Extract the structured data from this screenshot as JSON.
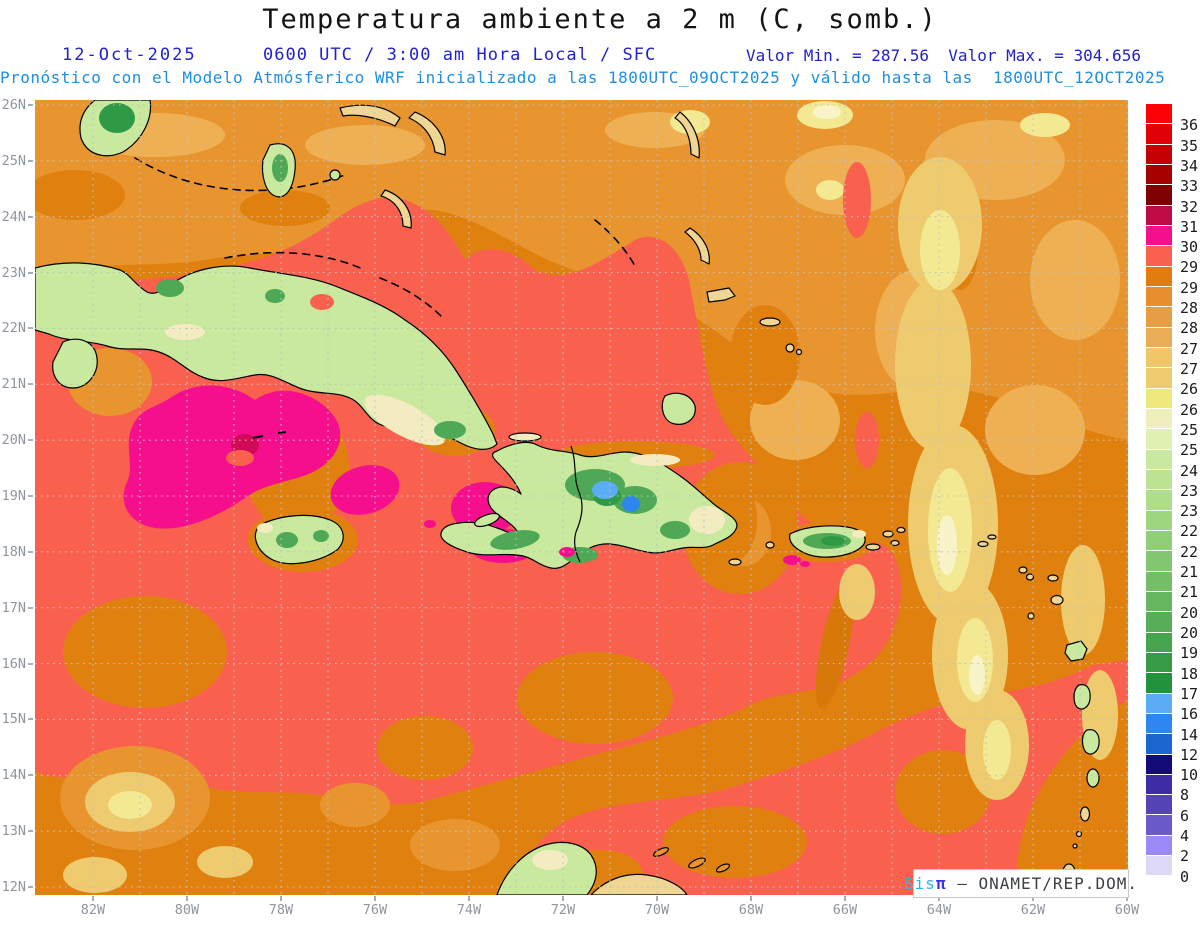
{
  "header": {
    "title": "Temperatura ambiente a 2 m (C, somb.)",
    "date": "12-Oct-2025",
    "time_info": "0600 UTC / 3:00 am Hora Local / SFC",
    "valor_min": "Valor Min. = 287.56",
    "valor_max": "Valor Max. = 304.656",
    "forecast_line": "Pronóstico con el Modelo Atmósferico WRF inicializado a las 1800UTC_09OCT2025 y válido hasta las  1800UTC_12OCT2025"
  },
  "map": {
    "lat_labels": [
      "26N",
      "25N",
      "24N",
      "23N",
      "22N",
      "21N",
      "20N",
      "19N",
      "18N",
      "17N",
      "16N",
      "15N",
      "14N",
      "13N",
      "12N"
    ],
    "lon_labels": [
      "82W",
      "80W",
      "78W",
      "76W",
      "74W",
      "72W",
      "70W",
      "68W",
      "66W",
      "64W",
      "62W",
      "60W"
    ]
  },
  "colorbar": {
    "labels": [
      "36",
      "35",
      "34",
      "33",
      "32",
      "31.5",
      "30.7",
      "29.7",
      "29",
      "28.5",
      "28",
      "27.5",
      "27",
      "26.5",
      "26",
      "25.5",
      "25",
      "24",
      "23.5",
      "23",
      "22.5",
      "22",
      "21.5",
      "21",
      "20.5",
      "20",
      "19",
      "18",
      "17",
      "16",
      "14",
      "12",
      "10",
      "8",
      "6",
      "4",
      "2",
      "0"
    ],
    "colors": [
      "#FB0207",
      "#E00005",
      "#C30003",
      "#A40100",
      "#7E0000",
      "#C00A45",
      "#F50F8C",
      "#F9614E",
      "#E17D0E",
      "#E78F2E",
      "#E69E46",
      "#E9AE55",
      "#EFC768",
      "#EECB6E",
      "#EFE97D",
      "#EFEFBE",
      "#DFF0B0",
      "#C9E99E",
      "#BCE494",
      "#AEDE8A",
      "#9ED680",
      "#90CE78",
      "#82C670",
      "#74BE68",
      "#66B660",
      "#58AE58",
      "#46A44E",
      "#359B45",
      "#23923C",
      "#5AACF5",
      "#2E86F0",
      "#1B67D2",
      "#150B78",
      "#3D2DA5",
      "#5544B5",
      "#6A5BC8",
      "#9B8AF5",
      "#DCD8F5",
      "#FFFFFF"
    ]
  },
  "watermark": {
    "sis": "Sis",
    "pi": "π",
    "org": " – ONAMET/REP.DOM."
  },
  "palette": {
    "ocean_orange": "#E0810F",
    "ocean_tan": "#E8952F",
    "ocean_salmon": "#F9614E",
    "ocean_magenta": "#F50F8C",
    "land_green": "#C9E99E",
    "mountain_green": "#2F9A45",
    "cold_blue": "#5AACF5",
    "header_blue": "#2222CC",
    "forecast_blue": "#1E8FE0",
    "axis_gray": "#8F969E"
  }
}
